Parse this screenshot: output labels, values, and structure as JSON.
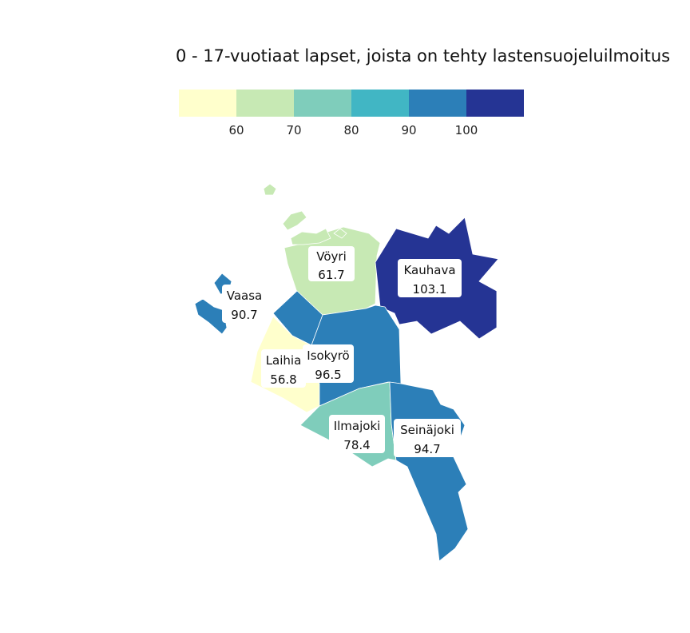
{
  "title": "0 - 17-vuotiaat lapset, joista on tehty lastensuojeluilmoitus",
  "legend": {
    "colors": [
      "#ffffcc",
      "#c7e9b4",
      "#7fcdbb",
      "#41b6c4",
      "#2c7fb8",
      "#253494"
    ],
    "ticks": [
      "60",
      "70",
      "80",
      "90",
      "100"
    ]
  },
  "regions": [
    {
      "name": "Vöyri",
      "value": "61.7",
      "color": "#c7e9b4"
    },
    {
      "name": "Kauhava",
      "value": "103.1",
      "color": "#253494"
    },
    {
      "name": "Vaasa",
      "value": "90.7",
      "color": "#2c7fb8"
    },
    {
      "name": "Laihia",
      "value": "56.8",
      "color": "#ffffcc"
    },
    {
      "name": "Isokyrö",
      "value": "96.5",
      "color": "#2c7fb8"
    },
    {
      "name": "Ilmajoki",
      "value": "78.4",
      "color": "#7fcdbb"
    },
    {
      "name": "Seinäjoki",
      "value": "94.7",
      "color": "#2c7fb8"
    }
  ]
}
